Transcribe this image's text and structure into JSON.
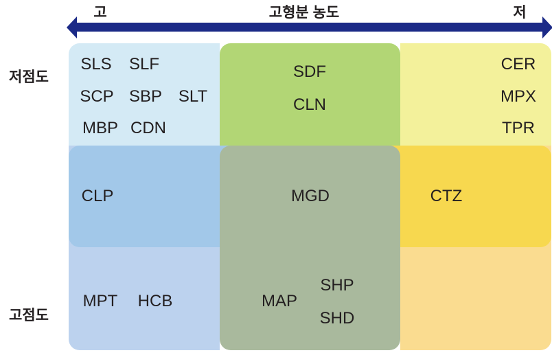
{
  "axis": {
    "left_label": "고",
    "title": "고형분 농도",
    "right_label": "저",
    "arrow_color": "#1b2a87"
  },
  "rows": {
    "top_label": "저점도",
    "bottom_label": "고점도"
  },
  "colors": {
    "top_left": "#d4eaf5",
    "top_center": "#b2d675",
    "top_right": "#f3f19b",
    "middle_left": "#a2c8e9",
    "middle_center": "#a9b99d",
    "middle_right": "#f7d84f",
    "bottom_left": "#bcd2ee",
    "bottom_center": "#a9b99d",
    "bottom_right": "#fadc90"
  },
  "cells": {
    "top_left": [
      "SLS",
      "SLF",
      "SCP",
      "SBP",
      "SLT",
      "MBP",
      "CDN"
    ],
    "top_center": [
      "SDF",
      "CLN"
    ],
    "top_right": [
      "CER",
      "MPX",
      "TPR"
    ],
    "middle_left": [
      "CLP"
    ],
    "middle_center": [
      "MGD"
    ],
    "middle_right": [
      "CTZ"
    ],
    "bottom_left": [
      "MPT",
      "HCB"
    ],
    "bottom_center": [
      "MAP",
      "SHP",
      "SHD"
    ]
  }
}
